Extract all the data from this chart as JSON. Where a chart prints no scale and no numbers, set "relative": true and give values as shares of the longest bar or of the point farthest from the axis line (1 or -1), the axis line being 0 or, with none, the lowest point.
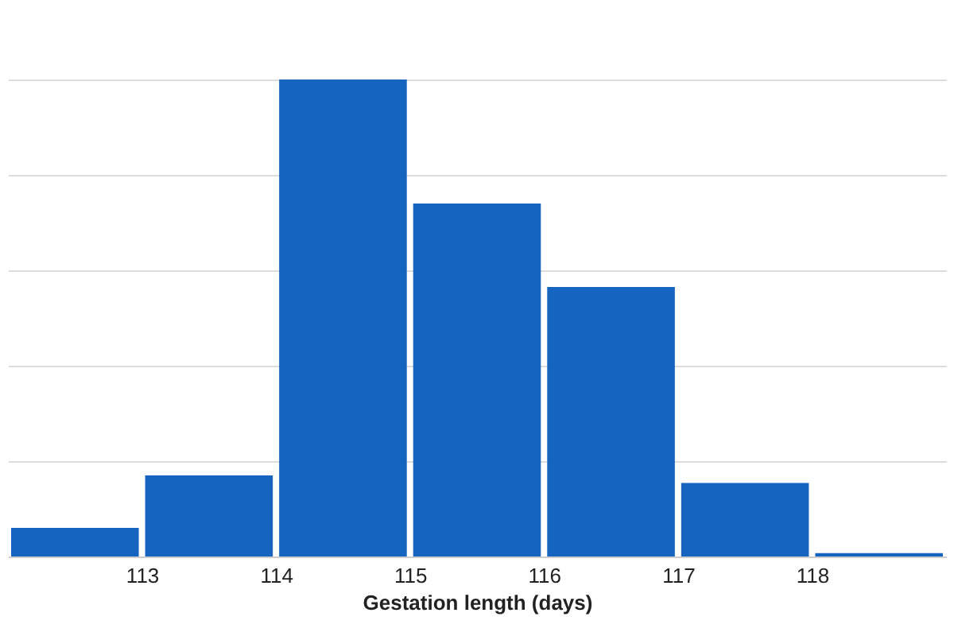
{
  "chart_data": {
    "type": "bar",
    "xlabel": "Gestation length (days)",
    "x": [
      112.5,
      113.5,
      114.5,
      115.5,
      116.5,
      117.5,
      118.5
    ],
    "values": [
      0.06,
      0.17,
      1,
      0.74,
      0.565,
      0.154,
      0.007
    ],
    "color": "#1565c0",
    "relative": true,
    "xlim": [
      112,
      119
    ],
    "xticks": [
      113,
      114,
      115,
      116,
      117,
      118
    ],
    "grid": "y",
    "tick_labels": "x"
  }
}
